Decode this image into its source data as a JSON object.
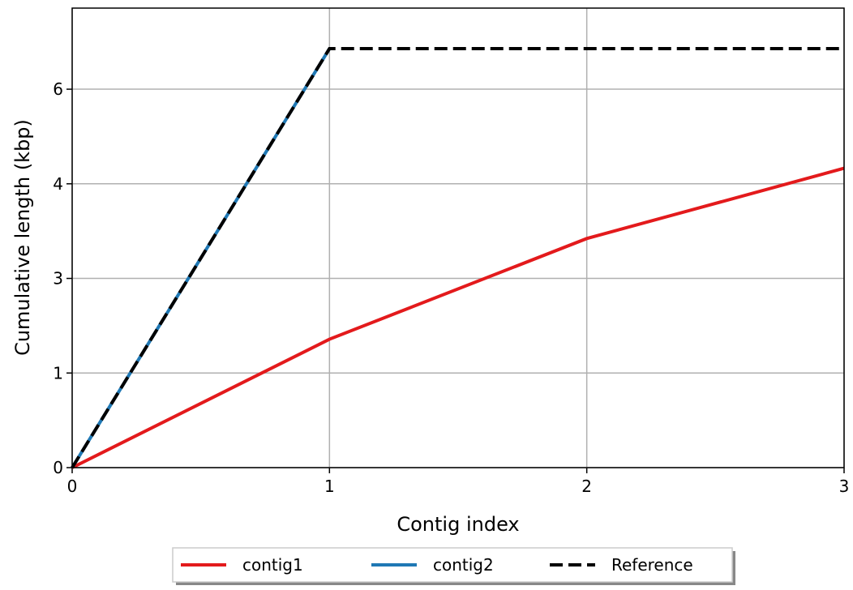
{
  "chart_data": {
    "type": "line",
    "xlabel": "Contig index",
    "ylabel": "Cumulative length (kbp)",
    "xlim": [
      0,
      3
    ],
    "xticks": [
      0,
      1,
      2,
      3
    ],
    "ylim": [
      0,
      6.8
    ],
    "yticks": [
      0,
      {
        "value": 1.4,
        "label": "1"
      },
      {
        "value": 2.8,
        "label": "3"
      },
      {
        "value": 4.2,
        "label": "4"
      },
      {
        "value": 5.6,
        "label": "6"
      }
    ],
    "grid": true,
    "legend": "lower center",
    "series": [
      {
        "name": "contig1",
        "color": "#e31a1c",
        "x": [
          0,
          1,
          2,
          3
        ],
        "values": [
          0,
          1.9,
          3.39,
          4.43
        ]
      },
      {
        "name": "contig2",
        "color": "#1f78b4",
        "x": [
          0,
          1
        ],
        "values": [
          0,
          6.2
        ]
      },
      {
        "name": "Reference",
        "color": "#000000",
        "dashed": true,
        "x": [
          0,
          1,
          2,
          3
        ],
        "values": [
          0,
          6.2,
          6.2,
          6.2
        ]
      }
    ]
  }
}
